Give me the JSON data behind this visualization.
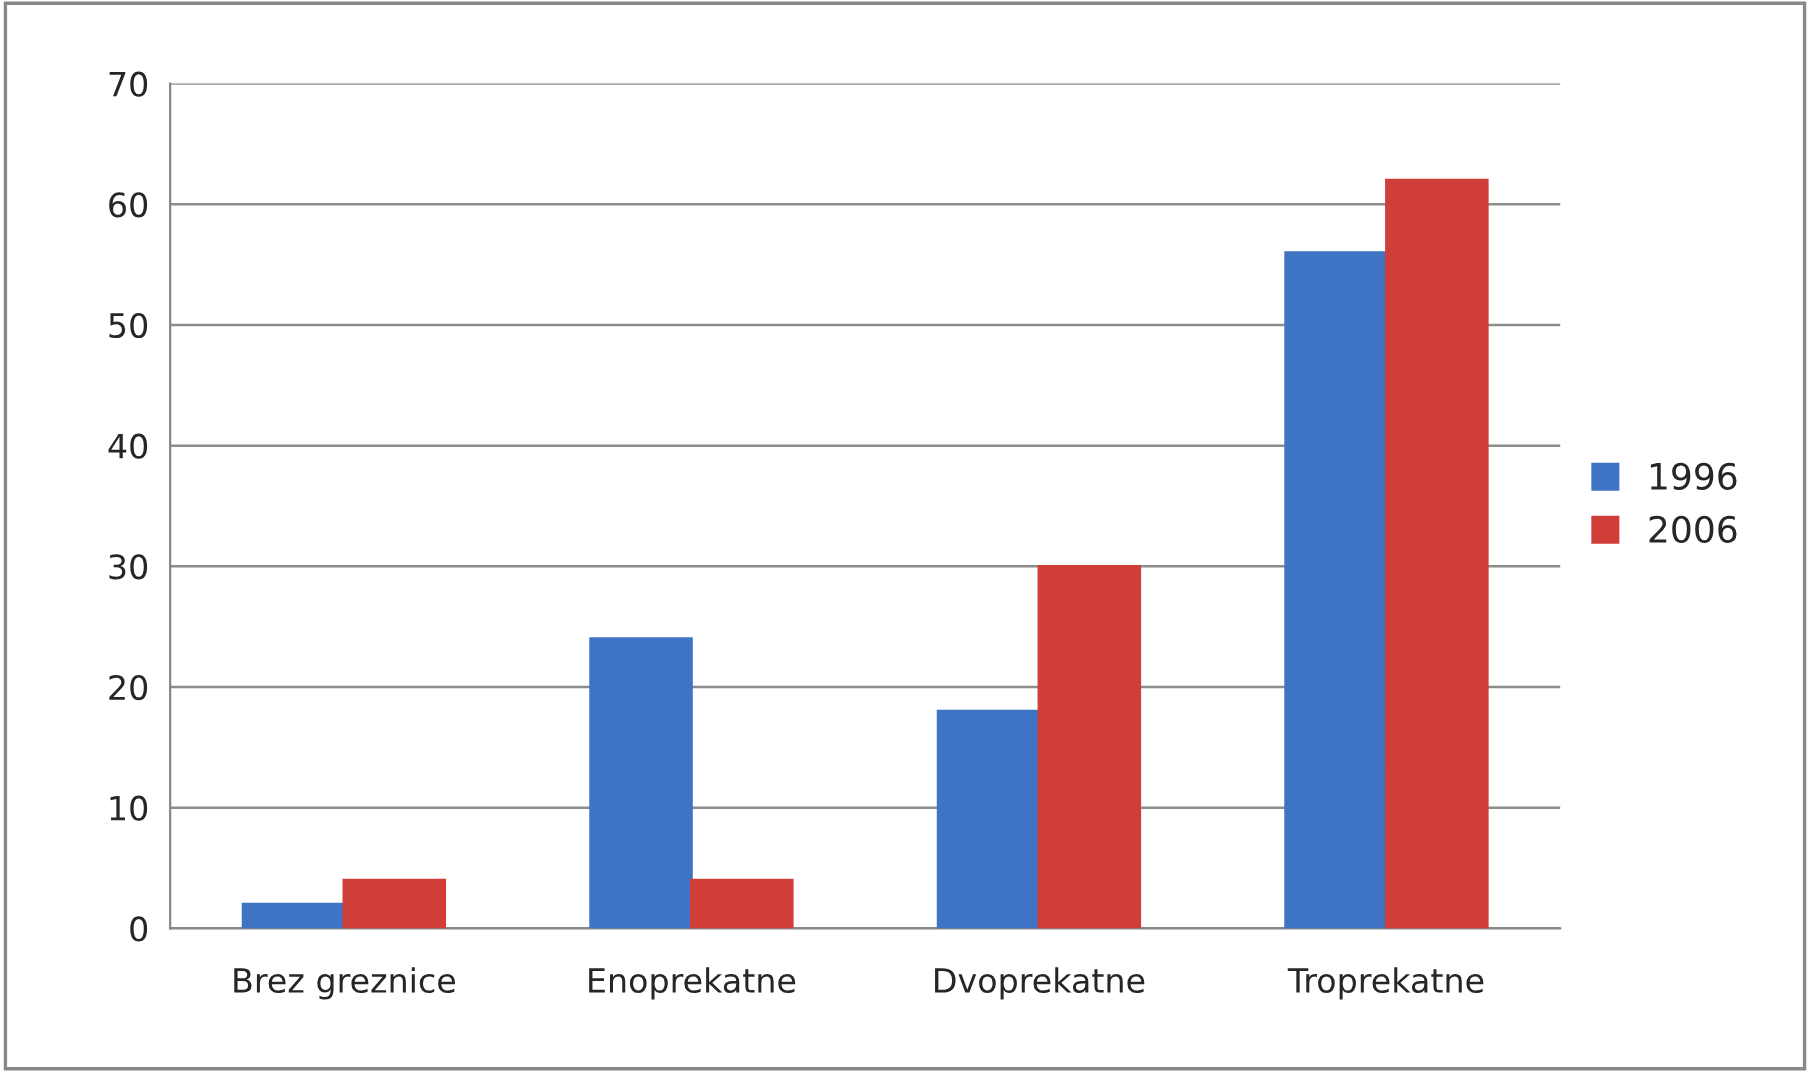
{
  "chart_data": {
    "type": "bar",
    "categories": [
      "Brez greznice",
      "Enoprekatne",
      "Dvoprekatne",
      "Troprekatne"
    ],
    "series": [
      {
        "name": "1996",
        "color": "#3f74c4",
        "values": [
          2,
          24,
          18,
          56
        ]
      },
      {
        "name": "2006",
        "color": "#d03e3a",
        "values": [
          4,
          4,
          30,
          62
        ]
      }
    ],
    "ylim": [
      0,
      70
    ],
    "yticks": [
      0,
      10,
      20,
      30,
      40,
      50,
      60,
      70
    ],
    "grid": "y",
    "legend": "right"
  }
}
